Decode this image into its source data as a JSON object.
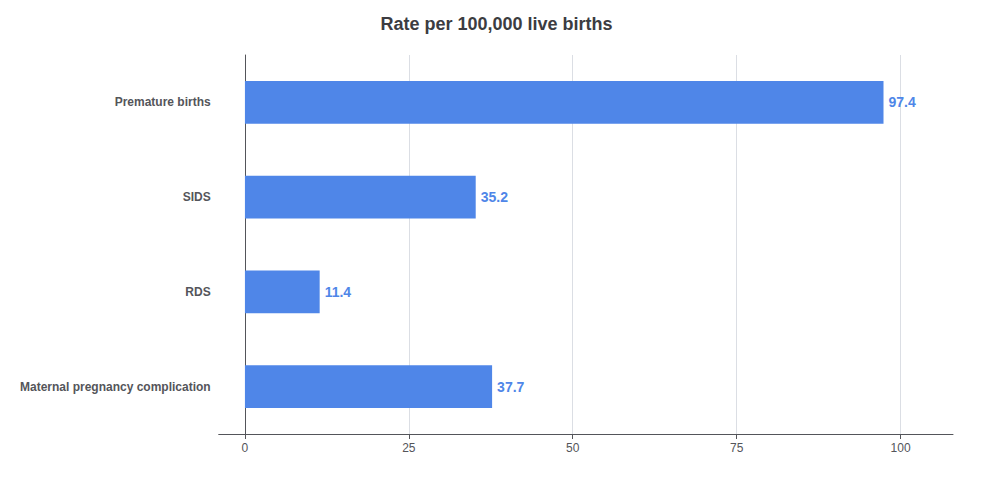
{
  "chart_data": {
    "type": "bar",
    "orientation": "horizontal",
    "title": "Rate per 100,000 live births",
    "categories": [
      "Maternal pregnancy complication",
      "RDS",
      "SIDS",
      "Premature births"
    ],
    "values": [
      37.7,
      11.4,
      35.2,
      97.4
    ],
    "color": "#4F86E8",
    "xlim": [
      -4,
      108
    ],
    "xticks": [
      0,
      25,
      50,
      75,
      100
    ],
    "grid": true,
    "data_labels": true
  }
}
